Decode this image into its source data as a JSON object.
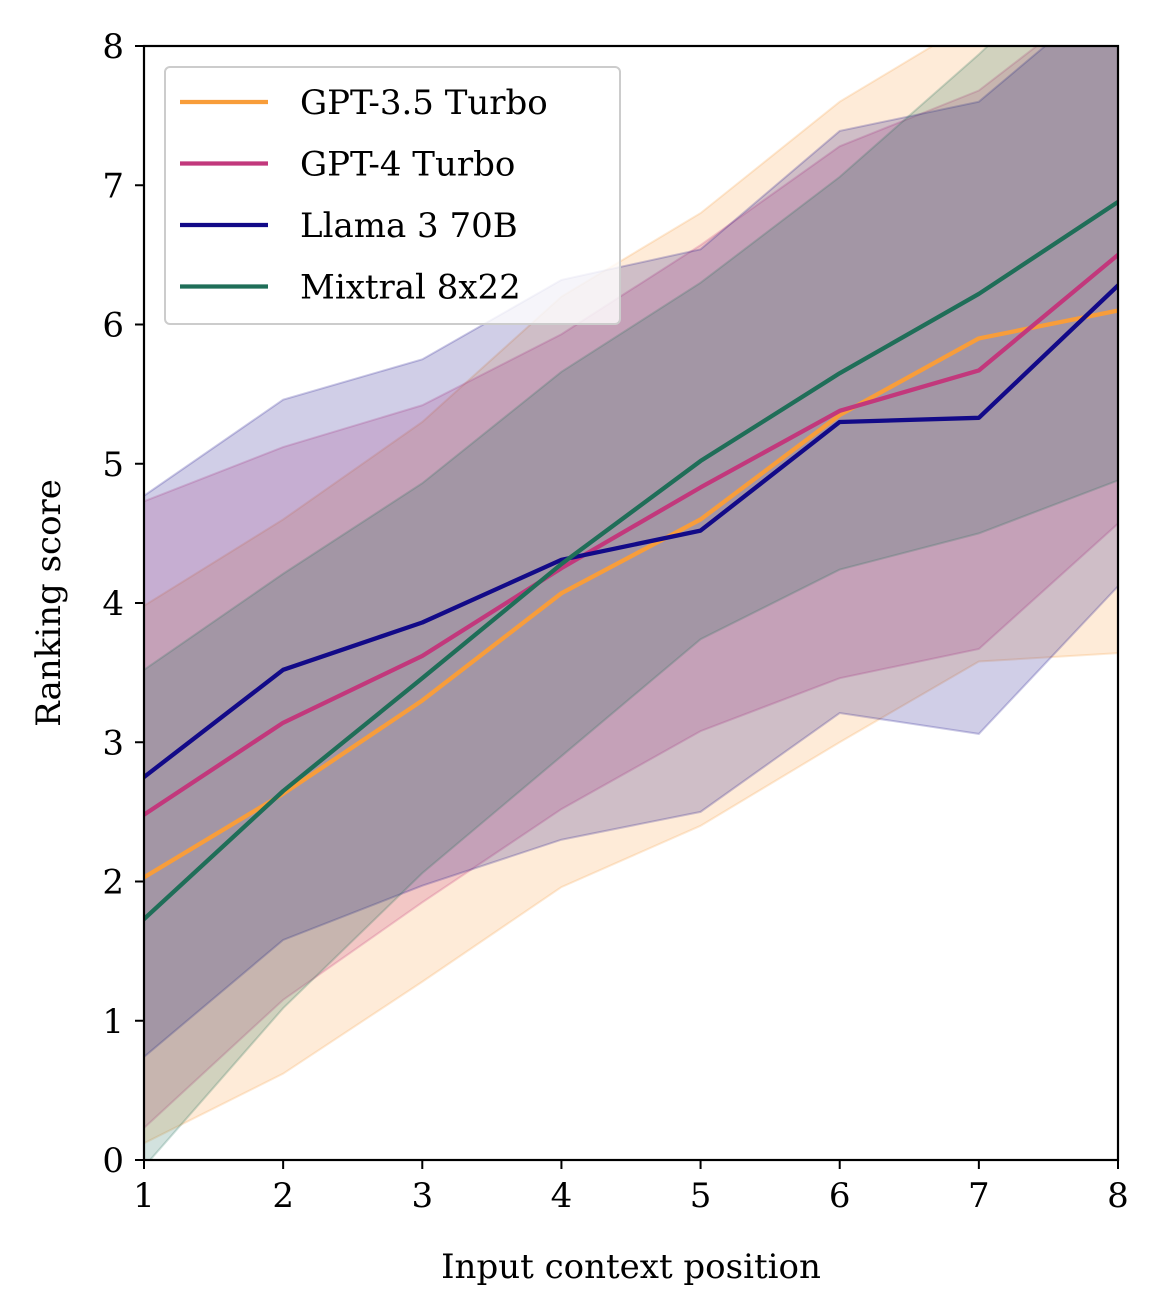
{
  "chart_data": {
    "type": "line",
    "xlabel": "Input context position",
    "ylabel": "Ranking score",
    "x": [
      1,
      2,
      3,
      4,
      5,
      6,
      7,
      8
    ],
    "xlim": [
      1,
      8
    ],
    "ylim": [
      0,
      8
    ],
    "xticks": [
      "1",
      "2",
      "3",
      "4",
      "5",
      "6",
      "7",
      "8"
    ],
    "yticks": [
      "0",
      "1",
      "2",
      "3",
      "4",
      "5",
      "6",
      "7",
      "8"
    ],
    "grid": false,
    "legend_position": "top-left",
    "series": [
      {
        "name": "GPT-3.5 Turbo",
        "color": "#f89d3a",
        "values": [
          2.03,
          2.63,
          3.3,
          4.07,
          4.6,
          5.35,
          5.9,
          6.1
        ],
        "lower": [
          0.12,
          0.62,
          1.28,
          1.96,
          2.4,
          3.0,
          3.58,
          3.64
        ],
        "upper": [
          3.98,
          4.6,
          5.3,
          6.2,
          6.8,
          7.6,
          8.2,
          8.6
        ]
      },
      {
        "name": "GPT-4 Turbo",
        "color": "#c2387c",
        "values": [
          2.48,
          3.14,
          3.62,
          4.25,
          4.83,
          5.38,
          5.67,
          6.5
        ],
        "lower": [
          0.23,
          1.15,
          1.85,
          2.52,
          3.08,
          3.46,
          3.67,
          4.57
        ],
        "upper": [
          4.73,
          5.12,
          5.42,
          5.93,
          6.57,
          7.28,
          7.68,
          8.45
        ]
      },
      {
        "name": "Llama 3 70B",
        "color": "#120a88",
        "values": [
          2.75,
          3.52,
          3.86,
          4.31,
          4.52,
          5.3,
          5.33,
          6.28
        ],
        "lower": [
          0.74,
          1.58,
          1.97,
          2.3,
          2.5,
          3.21,
          3.06,
          4.12
        ],
        "upper": [
          4.77,
          5.46,
          5.75,
          6.32,
          6.54,
          7.39,
          7.6,
          8.44
        ]
      },
      {
        "name": "Mixtral 8x22",
        "color": "#1f6e58",
        "values": [
          1.73,
          2.65,
          3.46,
          4.28,
          5.02,
          5.65,
          6.22,
          6.88
        ],
        "lower": [
          -0.05,
          1.09,
          2.06,
          2.9,
          3.74,
          4.24,
          4.5,
          4.88
        ],
        "upper": [
          3.52,
          4.21,
          4.86,
          5.66,
          6.3,
          7.06,
          7.94,
          8.88
        ]
      }
    ]
  }
}
